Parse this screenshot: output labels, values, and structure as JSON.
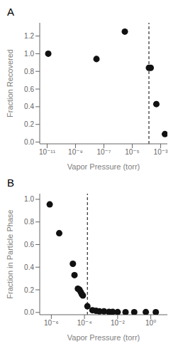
{
  "chart_data": [
    {
      "type": "scatter",
      "title": "A",
      "x": [
        1.2e-11,
        3e-08,
        3e-06,
        0.00015,
        0.0002,
        0.0005,
        0.002
      ],
      "values": [
        1.0,
        0.94,
        1.25,
        0.84,
        0.84,
        0.43,
        0.09
      ],
      "x_label": "Vapor Pressure (torr)",
      "y_label": "Fraction Recovered",
      "log": "x",
      "grid": false,
      "color": "#111111",
      "marker": "circle",
      "xlim": [
        3e-12,
        0.003
      ],
      "ylim": [
        -0.02,
        1.35
      ],
      "xticks": [
        {
          "value": 1e-11,
          "label": "10⁻¹¹"
        },
        {
          "value": 1e-09,
          "label": "10⁻⁹"
        },
        {
          "value": 1e-07,
          "label": "10⁻⁷"
        },
        {
          "value": 1e-05,
          "label": "10⁻⁵"
        },
        {
          "value": 0.001,
          "label": "10⁻³"
        }
      ],
      "yticks": [
        {
          "value": 0.0,
          "label": "0.0"
        },
        0.2,
        0.4,
        0.6,
        0.8,
        {
          "value": 1.0,
          "label": "1.0"
        },
        1.2
      ],
      "reference_line": {
        "x": 0.00015,
        "line_style": "dashed",
        "color": "#000000"
      }
    },
    {
      "type": "scatter",
      "title": "B",
      "x": [
        8e-07,
        3e-06,
        2e-05,
        2.5e-05,
        4e-05,
        5e-05,
        6e-05,
        7e-05,
        8e-05,
        0.00015,
        0.0003,
        0.0005,
        0.0008,
        0.0015,
        0.003,
        0.005,
        0.01,
        0.03,
        0.1,
        0.5,
        2.0
      ],
      "values": [
        0.955,
        0.7,
        0.43,
        0.33,
        0.21,
        0.2,
        0.18,
        0.16,
        0.15,
        0.055,
        0.02,
        0.015,
        0.01,
        0.01,
        0.005,
        0.005,
        0.003,
        0.002,
        0.002,
        0.003,
        0.002
      ],
      "x_label": "Vapor Pressure (torr)",
      "y_label": "Fraction in Particle Phase",
      "log": "x",
      "grid": false,
      "color": "#111111",
      "marker": "circle",
      "xlim": [
        2e-07,
        10.0
      ],
      "ylim": [
        -0.02,
        1.05
      ],
      "xticks": [
        {
          "value": 1e-06,
          "label": "10⁻⁶"
        },
        {
          "value": 0.0001,
          "label": "10⁻⁴"
        },
        {
          "value": 0.01,
          "label": "10⁻²"
        },
        {
          "value": 1.0,
          "label": "10⁰"
        }
      ],
      "yticks": [
        {
          "value": 0.0,
          "label": "0.0"
        },
        0.2,
        0.4,
        0.6,
        0.8,
        {
          "value": 1.0,
          "label": "1.0"
        }
      ],
      "reference_line": {
        "x": 0.00015,
        "line_style": "dashed",
        "color": "#000000"
      }
    }
  ]
}
